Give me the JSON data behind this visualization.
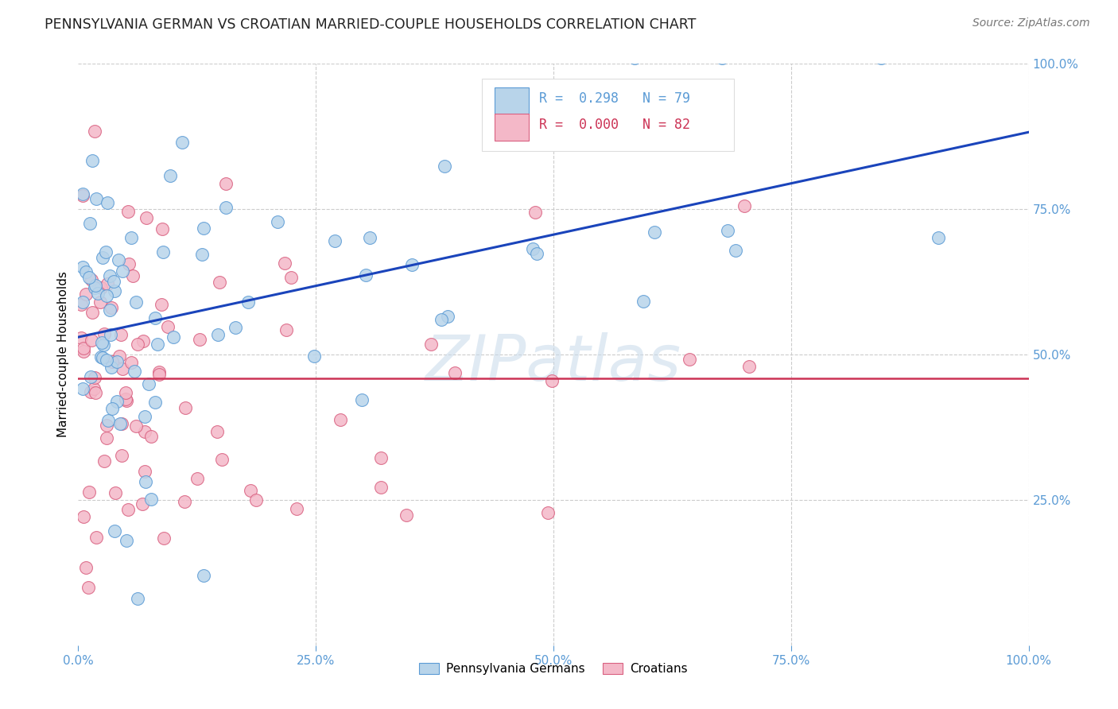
{
  "title": "PENNSYLVANIA GERMAN VS CROATIAN MARRIED-COUPLE HOUSEHOLDS CORRELATION CHART",
  "source": "Source: ZipAtlas.com",
  "ylabel": "Married-couple Households",
  "blue_R": "0.298",
  "blue_N": "79",
  "pink_R": "0.000",
  "pink_N": "82",
  "blue_color": "#b8d4ea",
  "blue_edge": "#5b9bd5",
  "pink_color": "#f4b8c8",
  "pink_edge": "#d96080",
  "line_blue": "#1a44bb",
  "line_pink": "#cc3355",
  "axis_color": "#5b9bd5",
  "grid_color": "#cccccc",
  "title_color": "#222222",
  "source_color": "#777777"
}
